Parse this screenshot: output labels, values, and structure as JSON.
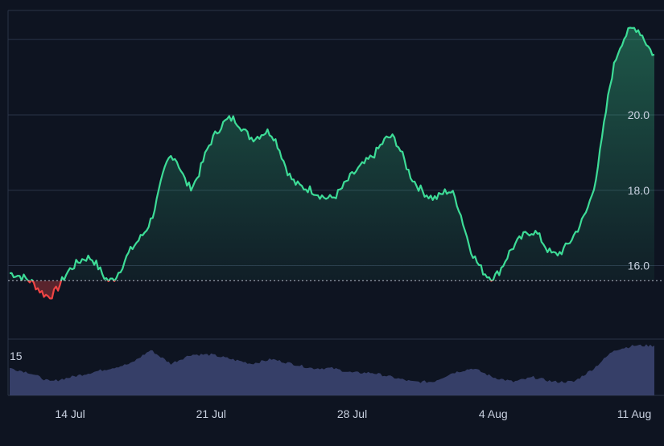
{
  "chart_data": {
    "type": "area",
    "baseline": 15.6,
    "ylim": [
      14.05,
      22.75
    ],
    "y_ticks": [
      "16.0",
      "18.0",
      "20.0"
    ],
    "x_ticks": [
      "14 Jul",
      "21 Jul",
      "28 Jul",
      "4 Aug",
      "11 Aug"
    ],
    "volume_label": "15",
    "grid": true,
    "colors": {
      "background": "#0e1421",
      "up_line": "#3ddc97",
      "down_line": "#ef4444",
      "baseline": "#cfd6e4",
      "grid": "#2a3448",
      "volume": "#3b4470",
      "axis_text": "#c9d1e0"
    },
    "series": [
      {
        "x": [
          "Jul 11",
          "Jul 12",
          "Jul 13",
          "Jul 14",
          "Jul 15",
          "Jul 16",
          "Jul 17",
          "Jul 18",
          "Jul 19",
          "Jul 20",
          "Jul 21",
          "Jul 22",
          "Jul 23",
          "Jul 24",
          "Jul 25",
          "Jul 26",
          "Jul 27",
          "Jul 28",
          "Jul 29",
          "Jul 30",
          "Jul 31",
          "Aug 1",
          "Aug 2",
          "Aug 3",
          "Aug 4",
          "Aug 5",
          "Aug 6",
          "Aug 7",
          "Aug 8",
          "Aug 9",
          "Aug 10",
          "Aug 11",
          "Aug 12"
        ],
        "values": [
          15.8,
          15.6,
          15.2,
          15.9,
          16.2,
          15.6,
          16.4,
          17.2,
          18.9,
          18.1,
          19.3,
          19.9,
          19.4,
          19.5,
          18.3,
          18.0,
          17.8,
          18.4,
          18.9,
          19.4,
          18.3,
          17.8,
          17.9,
          16.3,
          15.7,
          16.5,
          16.9,
          16.3,
          16.8,
          18.1,
          21.3,
          22.3,
          21.6
        ]
      }
    ],
    "volume": [
      0.6,
      0.5,
      0.3,
      0.4,
      0.5,
      0.6,
      0.7,
      1.0,
      0.7,
      0.9,
      0.9,
      0.8,
      0.7,
      0.8,
      0.7,
      0.6,
      0.6,
      0.5,
      0.5,
      0.4,
      0.3,
      0.3,
      0.5,
      0.6,
      0.4,
      0.3,
      0.4,
      0.3,
      0.3,
      0.6,
      1.0,
      1.1,
      1.1
    ]
  }
}
